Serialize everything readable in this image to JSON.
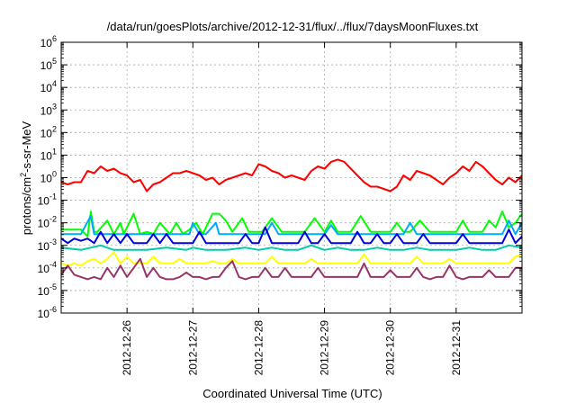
{
  "chart_data": {
    "type": "line",
    "title": "/data/run/goesPlots/archive/2012-12-31/flux/../flux/7daysMoonFluxes.txt",
    "xlabel": "Coordinated Universal Time (UTC)",
    "ylabel_prefix": "protons/cm",
    "ylabel_sup": "2",
    "ylabel_suffix": "-s-sr-MeV",
    "y_scale": "log",
    "ylim_exponents": [
      -6,
      6
    ],
    "ytick_exponents": [
      -6,
      -5,
      -4,
      -3,
      -2,
      -1,
      0,
      1,
      2,
      3,
      4,
      5,
      6
    ],
    "ytick_base": "10",
    "xlim_days": [
      0,
      7
    ],
    "xtick_positions_days": [
      1,
      2,
      3,
      4,
      5,
      6
    ],
    "xtick_labels": [
      "2012-12-26",
      "2012-12-27",
      "2012-12-28",
      "2012-12-29",
      "2012-12-30",
      "2012-12-31"
    ],
    "grid": true,
    "legend": "none",
    "series": [
      {
        "color": "#ff0000",
        "width": 2,
        "x_days": [
          0,
          0.1,
          0.2,
          0.3,
          0.4,
          0.5,
          0.6,
          0.7,
          0.8,
          0.9,
          1.0,
          1.1,
          1.2,
          1.3,
          1.4,
          1.5,
          1.6,
          1.7,
          1.8,
          1.9,
          2.0,
          2.1,
          2.2,
          2.3,
          2.4,
          2.5,
          2.6,
          2.7,
          2.8,
          2.9,
          3.0,
          3.1,
          3.2,
          3.3,
          3.4,
          3.5,
          3.6,
          3.7,
          3.8,
          3.9,
          4.0,
          4.1,
          4.2,
          4.3,
          4.4,
          4.5,
          4.6,
          4.7,
          4.8,
          4.9,
          5.0,
          5.1,
          5.2,
          5.3,
          5.4,
          5.5,
          5.6,
          5.7,
          5.8,
          5.9,
          6.0,
          6.1,
          6.2,
          6.3,
          6.4,
          6.5,
          6.6,
          6.7,
          6.8,
          6.9,
          7.0
        ],
        "y_log10": [
          -0.2,
          -0.3,
          -0.2,
          -0.2,
          0.3,
          0.2,
          0.5,
          0.3,
          0.4,
          0.2,
          0.1,
          -0.2,
          -0.1,
          -0.6,
          -0.3,
          -0.2,
          0.0,
          0.2,
          0.2,
          0.3,
          0.2,
          0.1,
          -0.1,
          0.0,
          -0.3,
          -0.1,
          0.0,
          0.1,
          0.2,
          0.1,
          0.6,
          0.5,
          0.3,
          0.2,
          0.0,
          0.1,
          0.0,
          -0.1,
          0.3,
          0.5,
          0.4,
          0.7,
          0.8,
          0.7,
          0.4,
          0.1,
          -0.2,
          -0.4,
          -0.4,
          -0.5,
          -0.6,
          -0.4,
          0.1,
          -0.1,
          0.3,
          0.2,
          0.1,
          -0.1,
          -0.3,
          0.0,
          0.2,
          0.5,
          0.3,
          0.7,
          0.5,
          0.2,
          -0.1,
          -0.3,
          0.0,
          -0.2,
          0.1
        ]
      },
      {
        "color": "#00ff00",
        "width": 2,
        "x_days": [
          0,
          0.15,
          0.3,
          0.4,
          0.45,
          0.5,
          0.55,
          0.7,
          0.8,
          0.9,
          0.95,
          1.1,
          1.2,
          1.3,
          1.4,
          1.5,
          1.65,
          1.75,
          1.85,
          1.95,
          2.05,
          2.15,
          2.3,
          2.4,
          2.5,
          2.6,
          2.75,
          2.85,
          2.95,
          3.05,
          3.2,
          3.35,
          3.45,
          3.55,
          3.7,
          3.85,
          4.0,
          4.1,
          4.2,
          4.3,
          4.4,
          4.55,
          4.7,
          4.85,
          5.0,
          5.1,
          5.2,
          5.3,
          5.45,
          5.6,
          5.7,
          5.85,
          6.0,
          6.1,
          6.2,
          6.3,
          6.4,
          6.5,
          6.6,
          6.7,
          6.8,
          6.9,
          7.0
        ],
        "y_log10": [
          -2.3,
          -2.3,
          -2.3,
          -2.6,
          -1.5,
          -2.4,
          -2.4,
          -1.9,
          -2.5,
          -2.0,
          -2.5,
          -1.6,
          -2.5,
          -2.4,
          -2.5,
          -2.0,
          -2.5,
          -2.0,
          -2.5,
          -2.3,
          -2.0,
          -2.5,
          -1.6,
          -1.6,
          -1.9,
          -2.4,
          -1.8,
          -2.4,
          -2.4,
          -2.4,
          -1.8,
          -2.4,
          -2.4,
          -2.4,
          -2.4,
          -1.8,
          -2.4,
          -1.9,
          -2.4,
          -2.4,
          -2.4,
          -1.7,
          -2.4,
          -2.4,
          -2.4,
          -2.0,
          -2.4,
          -2.4,
          -1.9,
          -2.4,
          -2.4,
          -2.4,
          -2.4,
          -1.9,
          -2.4,
          -2.4,
          -2.4,
          -1.9,
          -2.2,
          -1.5,
          -2.2,
          -2.0,
          -1.6
        ]
      },
      {
        "color": "#00aaff",
        "width": 2,
        "x_days": [
          0,
          0.3,
          0.45,
          0.5,
          0.6,
          0.8,
          1.0,
          1.2,
          1.4,
          1.6,
          1.8,
          1.95,
          2.0,
          2.1,
          2.2,
          2.35,
          2.4,
          2.6,
          2.8,
          3.0,
          3.1,
          3.2,
          3.3,
          3.5,
          3.7,
          3.9,
          4.0,
          4.1,
          4.2,
          4.4,
          4.6,
          4.8,
          5.0,
          5.2,
          5.3,
          5.4,
          5.6,
          5.8,
          6.0,
          6.1,
          6.3,
          6.5,
          6.7,
          6.8,
          6.9,
          7.0
        ],
        "y_log10": [
          -2.5,
          -2.5,
          -1.7,
          -2.5,
          -2.5,
          -2.5,
          -2.5,
          -2.5,
          -2.5,
          -2.5,
          -2.5,
          -2.5,
          -2.0,
          -2.5,
          -2.5,
          -2.0,
          -2.5,
          -2.5,
          -2.5,
          -2.5,
          -2.5,
          -2.0,
          -2.5,
          -2.5,
          -2.5,
          -2.5,
          -2.5,
          -2.1,
          -2.5,
          -2.5,
          -2.5,
          -2.5,
          -2.5,
          -2.5,
          -2.0,
          -2.5,
          -2.5,
          -2.5,
          -2.5,
          -2.5,
          -2.5,
          -2.5,
          -2.5,
          -1.9,
          -2.5,
          -2.0
        ]
      },
      {
        "color": "#0000dd",
        "width": 2,
        "x_days": [
          0,
          0.1,
          0.2,
          0.3,
          0.4,
          0.5,
          0.6,
          0.7,
          0.8,
          0.9,
          1.0,
          1.1,
          1.2,
          1.3,
          1.4,
          1.5,
          1.6,
          1.7,
          1.8,
          1.9,
          2.0,
          2.1,
          2.2,
          2.3,
          2.4,
          2.5,
          2.6,
          2.7,
          2.8,
          2.9,
          3.0,
          3.1,
          3.2,
          3.3,
          3.4,
          3.5,
          3.6,
          3.7,
          3.8,
          3.9,
          4.0,
          4.1,
          4.2,
          4.3,
          4.4,
          4.5,
          4.6,
          4.7,
          4.8,
          4.9,
          5.0,
          5.1,
          5.2,
          5.3,
          5.4,
          5.5,
          5.6,
          5.7,
          5.8,
          5.9,
          6.0,
          6.1,
          6.2,
          6.3,
          6.4,
          6.5,
          6.6,
          6.7,
          6.8,
          6.9,
          7.0
        ],
        "y_log10": [
          -2.7,
          -2.9,
          -2.7,
          -2.8,
          -2.7,
          -2.9,
          -2.4,
          -2.9,
          -2.5,
          -2.9,
          -2.5,
          -2.9,
          -2.9,
          -2.9,
          -2.5,
          -2.9,
          -2.5,
          -2.9,
          -2.9,
          -2.9,
          -2.9,
          -2.4,
          -2.9,
          -2.9,
          -2.9,
          -2.9,
          -2.9,
          -2.9,
          -2.5,
          -2.9,
          -2.9,
          -2.2,
          -2.9,
          -2.9,
          -2.9,
          -2.9,
          -2.9,
          -2.4,
          -2.9,
          -2.9,
          -2.5,
          -2.9,
          -2.9,
          -2.9,
          -2.9,
          -2.4,
          -2.9,
          -2.9,
          -2.5,
          -2.9,
          -2.9,
          -2.5,
          -2.9,
          -2.9,
          -2.9,
          -2.5,
          -2.9,
          -2.9,
          -2.9,
          -2.9,
          -2.9,
          -2.5,
          -2.9,
          -2.9,
          -2.9,
          -2.9,
          -2.9,
          -2.9,
          -2.3,
          -2.9,
          -2.6
        ]
      },
      {
        "color": "#00ccaa",
        "width": 2,
        "x_days": [
          0,
          0.3,
          0.6,
          0.8,
          1.0,
          1.3,
          1.6,
          1.9,
          2.0,
          2.2,
          2.5,
          2.8,
          3.0,
          3.2,
          3.4,
          3.6,
          3.8,
          4.0,
          4.2,
          4.4,
          4.6,
          4.8,
          5.0,
          5.2,
          5.4,
          5.6,
          5.8,
          6.0,
          6.2,
          6.4,
          6.6,
          6.8,
          7.0
        ],
        "y_log10": [
          -3.1,
          -3.2,
          -3.0,
          -3.2,
          -3.2,
          -3.2,
          -3.1,
          -3.2,
          -3.1,
          -3.2,
          -3.2,
          -3.1,
          -3.2,
          -3.1,
          -3.2,
          -3.2,
          -3.0,
          -3.2,
          -3.1,
          -3.2,
          -3.2,
          -3.1,
          -3.2,
          -3.2,
          -3.1,
          -3.2,
          -3.2,
          -3.2,
          -3.1,
          -3.2,
          -3.2,
          -3.0,
          -3.1
        ]
      },
      {
        "color": "#ffff00",
        "width": 2,
        "x_days": [
          0,
          0.1,
          0.2,
          0.3,
          0.4,
          0.5,
          0.6,
          0.7,
          0.8,
          0.9,
          1.0,
          1.1,
          1.2,
          1.3,
          1.4,
          1.5,
          1.6,
          1.7,
          1.8,
          1.9,
          2.0,
          2.1,
          2.2,
          2.3,
          2.4,
          2.5,
          2.6,
          2.7,
          2.8,
          2.9,
          3.0,
          3.1,
          3.2,
          3.3,
          3.4,
          3.5,
          3.6,
          3.7,
          3.8,
          3.9,
          4.0,
          4.1,
          4.2,
          4.3,
          4.4,
          4.5,
          4.6,
          4.7,
          4.8,
          4.9,
          5.0,
          5.1,
          5.2,
          5.3,
          5.4,
          5.5,
          5.6,
          5.7,
          5.8,
          5.9,
          6.0,
          6.1,
          6.2,
          6.3,
          6.4,
          6.5,
          6.6,
          6.7,
          6.8,
          6.9,
          7.0
        ],
        "y_log10": [
          -3.8,
          -3.9,
          -3.8,
          -3.9,
          -3.7,
          -3.6,
          -3.8,
          -3.6,
          -3.3,
          -3.8,
          -3.5,
          -3.8,
          -3.8,
          -3.8,
          -3.5,
          -3.8,
          -3.8,
          -3.8,
          -3.6,
          -3.8,
          -3.8,
          -3.8,
          -3.8,
          -3.7,
          -3.8,
          -3.8,
          -3.6,
          -3.8,
          -3.8,
          -3.8,
          -3.8,
          -3.8,
          -3.5,
          -3.8,
          -3.8,
          -3.8,
          -3.8,
          -3.8,
          -3.6,
          -3.8,
          -3.8,
          -3.8,
          -3.8,
          -3.8,
          -3.8,
          -3.8,
          -3.4,
          -3.8,
          -3.8,
          -3.8,
          -3.8,
          -3.8,
          -3.8,
          -3.8,
          -3.5,
          -3.8,
          -3.8,
          -3.8,
          -3.8,
          -3.6,
          -3.8,
          -3.8,
          -3.8,
          -3.8,
          -3.8,
          -3.8,
          -3.8,
          -3.8,
          -3.8,
          -3.5,
          -3.4
        ]
      },
      {
        "color": "#993366",
        "width": 2,
        "x_days": [
          0,
          0.1,
          0.2,
          0.3,
          0.4,
          0.5,
          0.6,
          0.7,
          0.8,
          0.9,
          1.0,
          1.1,
          1.2,
          1.3,
          1.4,
          1.5,
          1.6,
          1.7,
          1.8,
          1.9,
          2.0,
          2.1,
          2.2,
          2.3,
          2.4,
          2.5,
          2.6,
          2.7,
          2.8,
          2.9,
          3.0,
          3.1,
          3.2,
          3.3,
          3.4,
          3.5,
          3.6,
          3.7,
          3.8,
          3.9,
          4.0,
          4.1,
          4.2,
          4.3,
          4.4,
          4.5,
          4.6,
          4.7,
          4.8,
          4.9,
          5.0,
          5.1,
          5.2,
          5.3,
          5.4,
          5.5,
          5.6,
          5.7,
          5.8,
          5.9,
          6.0,
          6.1,
          6.2,
          6.3,
          6.4,
          6.5,
          6.6,
          6.7,
          6.8,
          6.9,
          7.0
        ],
        "y_log10": [
          -4.3,
          -3.9,
          -4.3,
          -4.4,
          -4.5,
          -4.4,
          -4.5,
          -4.0,
          -4.4,
          -3.9,
          -4.4,
          -4.0,
          -3.6,
          -4.4,
          -4.0,
          -4.4,
          -4.5,
          -4.5,
          -4.4,
          -4.2,
          -4.4,
          -4.4,
          -4.5,
          -4.4,
          -4.4,
          -4.0,
          -3.7,
          -4.4,
          -4.5,
          -4.4,
          -4.4,
          -4.0,
          -4.4,
          -4.4,
          -4.0,
          -4.4,
          -4.4,
          -4.4,
          -4.4,
          -4.0,
          -4.4,
          -4.4,
          -4.4,
          -4.4,
          -4.4,
          -4.4,
          -3.8,
          -4.4,
          -4.4,
          -4.4,
          -4.1,
          -4.4,
          -4.4,
          -4.4,
          -4.0,
          -4.4,
          -4.5,
          -4.4,
          -4.4,
          -3.9,
          -4.4,
          -4.5,
          -4.4,
          -4.4,
          -4.4,
          -4.1,
          -4.4,
          -4.4,
          -4.4,
          -4.0,
          -4.0
        ]
      }
    ]
  }
}
